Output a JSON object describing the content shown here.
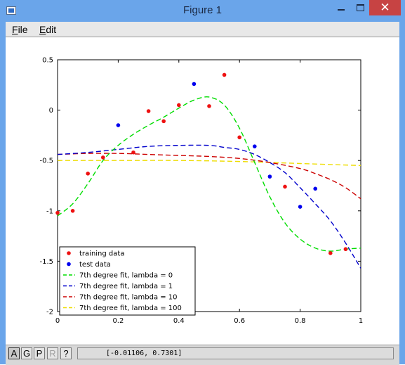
{
  "window": {
    "title": "Figure 1",
    "close_glyph": "✕"
  },
  "menu": {
    "file_first": "F",
    "file_rest": "ile",
    "edit_first": "E",
    "edit_rest": "dit"
  },
  "toolbar": {
    "buttons": [
      {
        "label": "A",
        "state": "active"
      },
      {
        "label": "G",
        "state": "normal"
      },
      {
        "label": "P",
        "state": "normal"
      },
      {
        "label": "R",
        "state": "disabled"
      },
      {
        "label": "?",
        "state": "normal"
      }
    ],
    "coordinates": "[-0.01106, 0.7301]"
  },
  "chart_data": {
    "type": "scatter",
    "title": "",
    "xlabel": "",
    "ylabel": "",
    "xlim": [
      0,
      1
    ],
    "ylim": [
      -2,
      0.5
    ],
    "xticks": [
      0,
      0.2,
      0.4,
      0.6,
      0.8,
      1
    ],
    "xtick_labels": [
      "0",
      "0.2",
      "0.4",
      "0.6",
      "0.8",
      "1"
    ],
    "yticks": [
      -2,
      -1.5,
      -1,
      -0.5,
      0,
      0.5
    ],
    "ytick_labels": [
      "-2",
      "-1.5",
      "-1",
      "-0.5",
      "0",
      "0.5"
    ],
    "grid": false,
    "legend_position": "bottom-left",
    "scatter_series": [
      {
        "name": "training data",
        "color": "#ee1111",
        "x": [
          0.0,
          0.05,
          0.1,
          0.15,
          0.25,
          0.3,
          0.35,
          0.4,
          0.5,
          0.55,
          0.6,
          0.75,
          0.9,
          0.95
        ],
        "y": [
          -1.02,
          -1.0,
          -0.63,
          -0.47,
          -0.42,
          -0.01,
          -0.11,
          0.05,
          0.04,
          0.35,
          -0.27,
          -0.76,
          -1.42,
          -1.38
        ]
      },
      {
        "name": "test data",
        "color": "#0000ee",
        "x": [
          0.2,
          0.45,
          0.65,
          0.7,
          0.8,
          0.85
        ],
        "y": [
          -0.15,
          0.26,
          -0.36,
          -0.66,
          -0.96,
          -0.78
        ]
      }
    ],
    "line_series": [
      {
        "name": "7th degree fit, lambda = 0",
        "color": "#00dd00",
        "x": [
          0.0,
          0.05,
          0.1,
          0.15,
          0.2,
          0.25,
          0.3,
          0.35,
          0.4,
          0.45,
          0.5,
          0.55,
          0.6,
          0.65,
          0.7,
          0.75,
          0.8,
          0.85,
          0.9,
          0.95,
          1.0
        ],
        "y": [
          -1.05,
          -0.93,
          -0.73,
          -0.5,
          -0.35,
          -0.24,
          -0.15,
          -0.07,
          0.02,
          0.1,
          0.13,
          0.05,
          -0.18,
          -0.52,
          -0.86,
          -1.12,
          -1.28,
          -1.37,
          -1.4,
          -1.38,
          -1.37
        ]
      },
      {
        "name": "7th degree fit, lambda = 1",
        "color": "#0000cc",
        "x": [
          0.0,
          0.1,
          0.2,
          0.3,
          0.4,
          0.5,
          0.55,
          0.6,
          0.65,
          0.7,
          0.75,
          0.8,
          0.85,
          0.9,
          0.95,
          1.0
        ],
        "y": [
          -0.44,
          -0.42,
          -0.39,
          -0.36,
          -0.35,
          -0.35,
          -0.37,
          -0.39,
          -0.44,
          -0.52,
          -0.62,
          -0.77,
          -0.93,
          -1.1,
          -1.32,
          -1.57
        ]
      },
      {
        "name": "7th degree fit, lambda = 10",
        "color": "#cc0000",
        "x": [
          0.0,
          0.1,
          0.2,
          0.3,
          0.4,
          0.5,
          0.6,
          0.7,
          0.8,
          0.85,
          0.9,
          0.95,
          1.0
        ],
        "y": [
          -0.44,
          -0.43,
          -0.43,
          -0.44,
          -0.45,
          -0.46,
          -0.48,
          -0.52,
          -0.58,
          -0.63,
          -0.69,
          -0.77,
          -0.88
        ]
      },
      {
        "name": "7th degree fit, lambda = 100",
        "color": "#eedd00",
        "x": [
          0.0,
          0.2,
          0.4,
          0.6,
          0.8,
          1.0
        ],
        "y": [
          -0.5,
          -0.5,
          -0.5,
          -0.51,
          -0.53,
          -0.55
        ]
      }
    ]
  }
}
